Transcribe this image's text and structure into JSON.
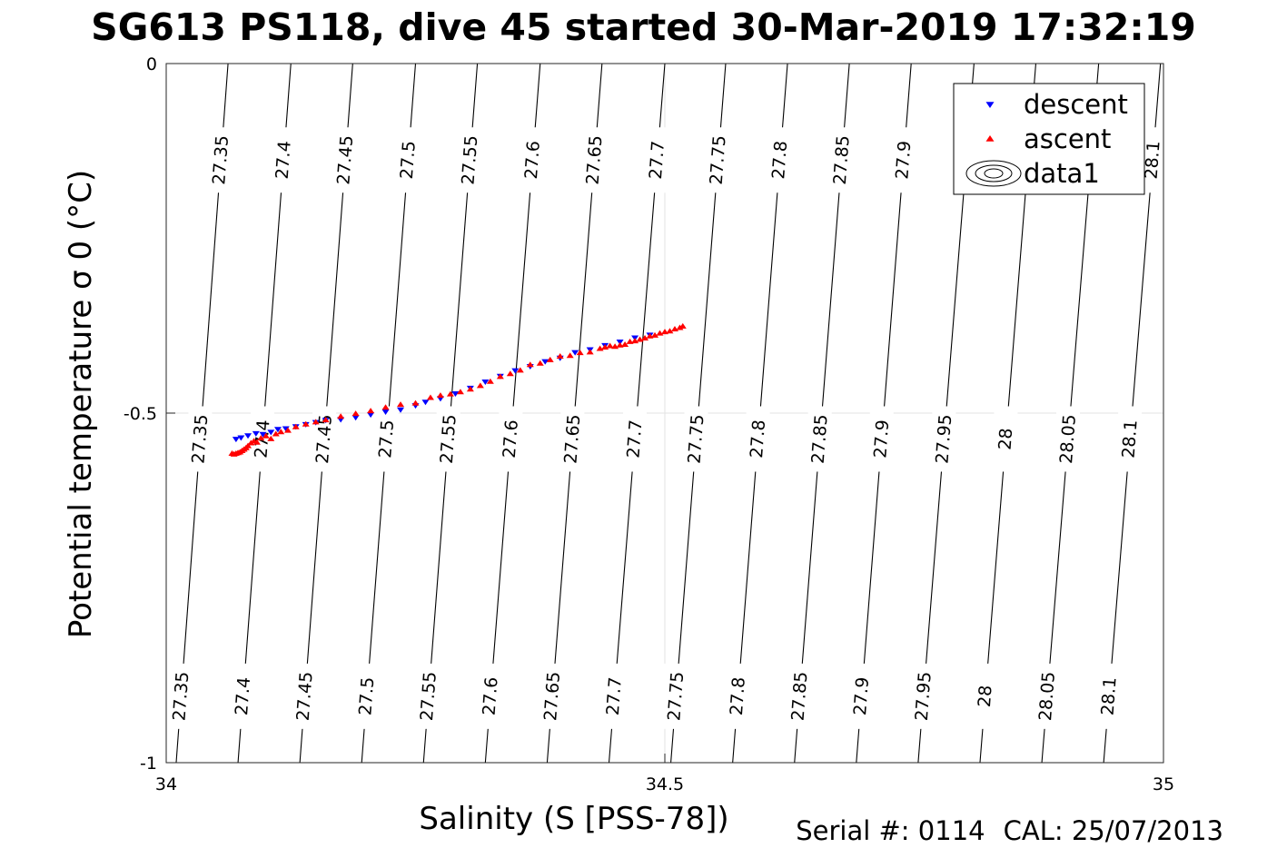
{
  "title": "SG613 PS118, dive 45 started 30-Mar-2019 17:32:19",
  "footer": {
    "serial": "Serial #: 0114",
    "cal": "CAL: 25/07/2013"
  },
  "chart_data": {
    "type": "scatter",
    "xlabel": "Salinity (S [PSS-78])",
    "ylabel": "Potential temperature σ 0 (°C)",
    "xlim": [
      34,
      35
    ],
    "ylim": [
      -1,
      0
    ],
    "xticks": [
      "34",
      "34.5",
      "35"
    ],
    "yticks": [
      "0",
      "-0.5",
      "-1"
    ],
    "grid": true,
    "legend_position": "top-right",
    "legend": [
      {
        "label": "descent",
        "marker": "triangle-down",
        "color": "#0000ff"
      },
      {
        "label": "ascent",
        "marker": "triangle-up",
        "color": "#ff0000"
      },
      {
        "label": "data1",
        "marker": "contour",
        "color": "#000000"
      }
    ],
    "contours": {
      "levels": [
        "27.35",
        "27.4",
        "27.45",
        "27.5",
        "27.55",
        "27.6",
        "27.65",
        "27.7",
        "27.75",
        "27.8",
        "27.85",
        "27.9",
        "27.95",
        "28",
        "28.05",
        "28.1"
      ],
      "salinity_at_top": [
        34.062,
        34.125,
        34.187,
        34.25,
        34.312,
        34.375,
        34.437,
        34.5,
        34.561,
        34.623,
        34.685,
        34.747,
        34.81,
        34.872,
        34.935,
        34.997
      ],
      "salinity_at_bottom": [
        34.01,
        34.072,
        34.134,
        34.196,
        34.258,
        34.32,
        34.382,
        34.444,
        34.506,
        34.568,
        34.63,
        34.692,
        34.754,
        34.816,
        34.878,
        34.94
      ],
      "labels_top": [
        "27.35",
        "27.4",
        "27.45",
        "27.5",
        "27.55",
        "27.6",
        "27.65",
        "27.7",
        "27.75",
        "27.8",
        "27.85",
        "27.9",
        "28.1"
      ],
      "labels_middle": [
        "27.35",
        "27.4",
        "27.45",
        "27.5",
        "27.55",
        "27.6",
        "27.65",
        "27.7",
        "27.75",
        "27.8",
        "27.85",
        "27.9",
        "27.95",
        "28",
        "28.05",
        "28.1"
      ],
      "labels_bottom": [
        "27.35",
        "27.4",
        "27.45",
        "27.5",
        "27.55",
        "27.6",
        "27.65",
        "27.7",
        "27.75",
        "27.8",
        "27.85",
        "27.9",
        "27.95",
        "28",
        "28.05",
        "28.1"
      ]
    },
    "series": [
      {
        "name": "descent",
        "color": "#0000ff",
        "marker": "triangle-down",
        "x": [
          34.07,
          34.075,
          34.082,
          34.09,
          34.097,
          34.105,
          34.112,
          34.12,
          34.13,
          34.14,
          34.15,
          34.16,
          34.175,
          34.19,
          34.205,
          34.22,
          34.235,
          34.25,
          34.26,
          34.275,
          34.29,
          34.305,
          34.32,
          34.335,
          34.35,
          34.365,
          34.38,
          34.395,
          34.41,
          34.425,
          34.44,
          34.455,
          34.47,
          34.485
        ],
        "y": [
          -0.537,
          -0.535,
          -0.532,
          -0.529,
          -0.53,
          -0.527,
          -0.523,
          -0.522,
          -0.519,
          -0.516,
          -0.513,
          -0.51,
          -0.509,
          -0.506,
          -0.502,
          -0.498,
          -0.495,
          -0.489,
          -0.484,
          -0.479,
          -0.472,
          -0.464,
          -0.455,
          -0.447,
          -0.439,
          -0.433,
          -0.426,
          -0.421,
          -0.413,
          -0.409,
          -0.403,
          -0.398,
          -0.392,
          -0.388
        ]
      },
      {
        "name": "ascent",
        "color": "#ff0000",
        "marker": "triangle-up",
        "x": [
          34.066,
          34.068,
          34.07,
          34.072,
          34.074,
          34.076,
          34.078,
          34.08,
          34.082,
          34.085,
          34.088,
          34.091,
          34.095,
          34.1,
          34.105,
          34.11,
          34.115,
          34.122,
          34.13,
          34.14,
          34.15,
          34.16,
          34.175,
          34.19,
          34.205,
          34.22,
          34.235,
          34.25,
          34.265,
          34.275,
          34.285,
          34.295,
          34.305,
          34.315,
          34.325,
          34.335,
          34.345,
          34.355,
          34.365,
          34.375,
          34.385,
          34.395,
          34.405,
          34.415,
          34.425,
          34.435,
          34.44,
          34.445,
          34.45,
          34.455,
          34.46,
          34.465,
          34.47,
          34.475,
          34.48,
          34.485,
          34.49,
          34.495,
          34.5,
          34.505,
          34.51,
          34.515,
          34.518
        ],
        "y": [
          -0.558,
          -0.559,
          -0.558,
          -0.557,
          -0.556,
          -0.554,
          -0.552,
          -0.55,
          -0.547,
          -0.543,
          -0.54,
          -0.542,
          -0.536,
          -0.533,
          -0.537,
          -0.53,
          -0.527,
          -0.525,
          -0.52,
          -0.516,
          -0.513,
          -0.51,
          -0.505,
          -0.501,
          -0.497,
          -0.492,
          -0.488,
          -0.486,
          -0.478,
          -0.475,
          -0.473,
          -0.47,
          -0.466,
          -0.461,
          -0.455,
          -0.448,
          -0.444,
          -0.439,
          -0.431,
          -0.429,
          -0.424,
          -0.419,
          -0.418,
          -0.414,
          -0.413,
          -0.408,
          -0.406,
          -0.404,
          -0.405,
          -0.403,
          -0.402,
          -0.398,
          -0.397,
          -0.395,
          -0.393,
          -0.39,
          -0.389,
          -0.386,
          -0.384,
          -0.383,
          -0.38,
          -0.378,
          -0.376
        ]
      }
    ]
  }
}
